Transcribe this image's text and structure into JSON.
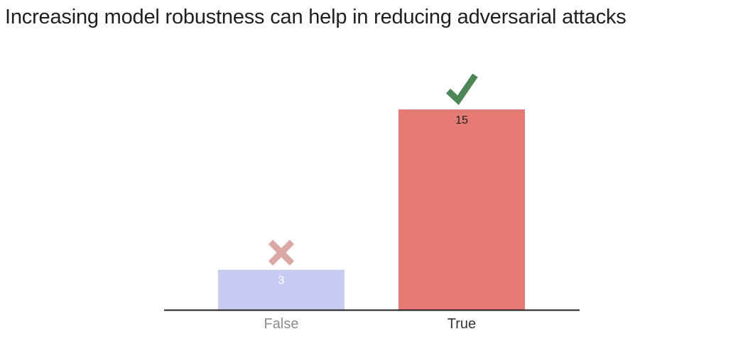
{
  "title": "Increasing model robustness can help in reducing adversarial attacks",
  "chart_data": {
    "type": "bar",
    "categories": [
      "False",
      "True"
    ],
    "values": [
      3,
      15
    ],
    "ylim": [
      0,
      15
    ],
    "grid": false,
    "legend": "none",
    "bar_colors": [
      "#c9cbf2",
      "#e57b74"
    ],
    "value_label_colors": [
      "#ffffff",
      "#1f1f1f"
    ],
    "category_label_colors": [
      "#8c8c8c",
      "#333333"
    ],
    "markers": [
      {
        "category": "False",
        "icon": "cross-icon",
        "color": "#dba9a4"
      },
      {
        "category": "True",
        "icon": "check-icon",
        "color": "#4e8554"
      }
    ],
    "baseline_color": "#1f1f1f"
  }
}
